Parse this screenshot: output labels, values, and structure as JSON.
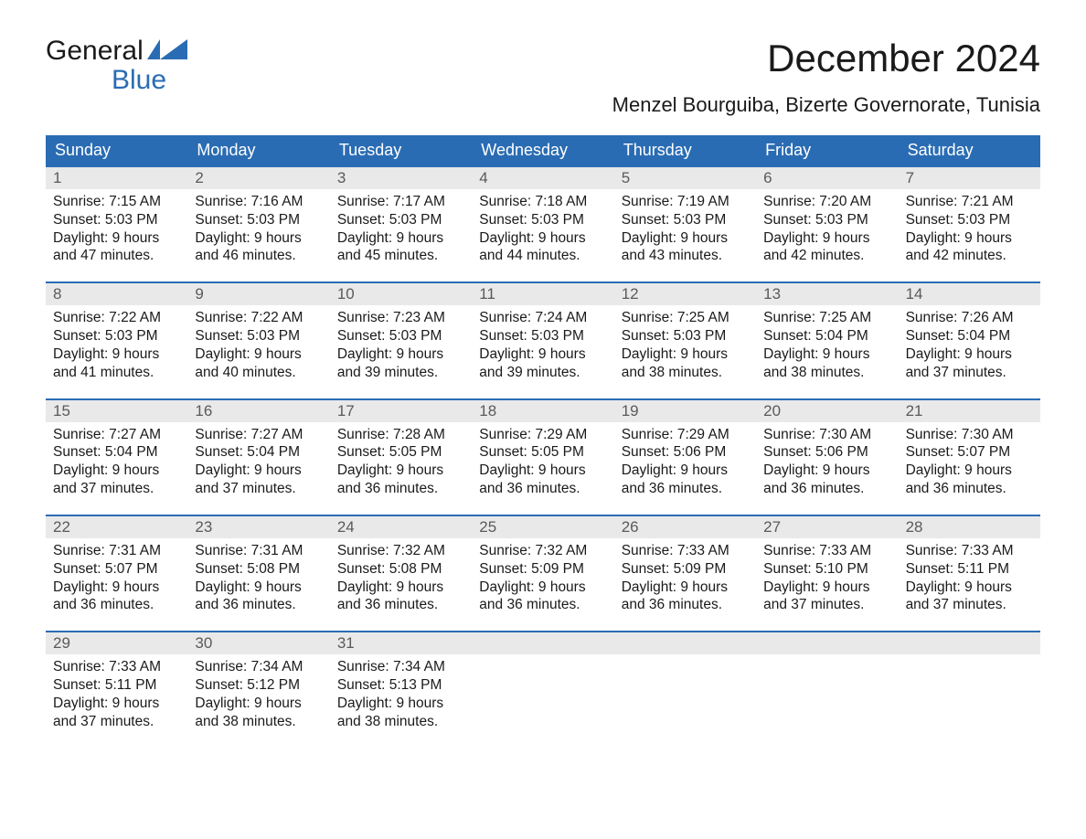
{
  "logo": {
    "line1": "General",
    "line2": "Blue",
    "icon_color": "#2a6cb3"
  },
  "title": "December 2024",
  "location": "Menzel Bourguiba, Bizerte Governorate, Tunisia",
  "colors": {
    "header_bg": "#2a6cb3",
    "header_text": "#ffffff",
    "daynum_bg": "#e9e9e9",
    "daynum_text": "#5a5a5a",
    "border": "#2a6cb3",
    "body_text": "#1a1a1a",
    "background": "#ffffff"
  },
  "typography": {
    "title_fontsize": 42,
    "location_fontsize": 22,
    "dow_fontsize": 18,
    "daynum_fontsize": 17,
    "body_fontsize": 15.5,
    "font_family": "Arial"
  },
  "days_of_week": [
    "Sunday",
    "Monday",
    "Tuesday",
    "Wednesday",
    "Thursday",
    "Friday",
    "Saturday"
  ],
  "weeks": [
    [
      {
        "n": "1",
        "sr": "Sunrise: 7:15 AM",
        "ss": "Sunset: 5:03 PM",
        "d1": "Daylight: 9 hours",
        "d2": "and 47 minutes."
      },
      {
        "n": "2",
        "sr": "Sunrise: 7:16 AM",
        "ss": "Sunset: 5:03 PM",
        "d1": "Daylight: 9 hours",
        "d2": "and 46 minutes."
      },
      {
        "n": "3",
        "sr": "Sunrise: 7:17 AM",
        "ss": "Sunset: 5:03 PM",
        "d1": "Daylight: 9 hours",
        "d2": "and 45 minutes."
      },
      {
        "n": "4",
        "sr": "Sunrise: 7:18 AM",
        "ss": "Sunset: 5:03 PM",
        "d1": "Daylight: 9 hours",
        "d2": "and 44 minutes."
      },
      {
        "n": "5",
        "sr": "Sunrise: 7:19 AM",
        "ss": "Sunset: 5:03 PM",
        "d1": "Daylight: 9 hours",
        "d2": "and 43 minutes."
      },
      {
        "n": "6",
        "sr": "Sunrise: 7:20 AM",
        "ss": "Sunset: 5:03 PM",
        "d1": "Daylight: 9 hours",
        "d2": "and 42 minutes."
      },
      {
        "n": "7",
        "sr": "Sunrise: 7:21 AM",
        "ss": "Sunset: 5:03 PM",
        "d1": "Daylight: 9 hours",
        "d2": "and 42 minutes."
      }
    ],
    [
      {
        "n": "8",
        "sr": "Sunrise: 7:22 AM",
        "ss": "Sunset: 5:03 PM",
        "d1": "Daylight: 9 hours",
        "d2": "and 41 minutes."
      },
      {
        "n": "9",
        "sr": "Sunrise: 7:22 AM",
        "ss": "Sunset: 5:03 PM",
        "d1": "Daylight: 9 hours",
        "d2": "and 40 minutes."
      },
      {
        "n": "10",
        "sr": "Sunrise: 7:23 AM",
        "ss": "Sunset: 5:03 PM",
        "d1": "Daylight: 9 hours",
        "d2": "and 39 minutes."
      },
      {
        "n": "11",
        "sr": "Sunrise: 7:24 AM",
        "ss": "Sunset: 5:03 PM",
        "d1": "Daylight: 9 hours",
        "d2": "and 39 minutes."
      },
      {
        "n": "12",
        "sr": "Sunrise: 7:25 AM",
        "ss": "Sunset: 5:03 PM",
        "d1": "Daylight: 9 hours",
        "d2": "and 38 minutes."
      },
      {
        "n": "13",
        "sr": "Sunrise: 7:25 AM",
        "ss": "Sunset: 5:04 PM",
        "d1": "Daylight: 9 hours",
        "d2": "and 38 minutes."
      },
      {
        "n": "14",
        "sr": "Sunrise: 7:26 AM",
        "ss": "Sunset: 5:04 PM",
        "d1": "Daylight: 9 hours",
        "d2": "and 37 minutes."
      }
    ],
    [
      {
        "n": "15",
        "sr": "Sunrise: 7:27 AM",
        "ss": "Sunset: 5:04 PM",
        "d1": "Daylight: 9 hours",
        "d2": "and 37 minutes."
      },
      {
        "n": "16",
        "sr": "Sunrise: 7:27 AM",
        "ss": "Sunset: 5:04 PM",
        "d1": "Daylight: 9 hours",
        "d2": "and 37 minutes."
      },
      {
        "n": "17",
        "sr": "Sunrise: 7:28 AM",
        "ss": "Sunset: 5:05 PM",
        "d1": "Daylight: 9 hours",
        "d2": "and 36 minutes."
      },
      {
        "n": "18",
        "sr": "Sunrise: 7:29 AM",
        "ss": "Sunset: 5:05 PM",
        "d1": "Daylight: 9 hours",
        "d2": "and 36 minutes."
      },
      {
        "n": "19",
        "sr": "Sunrise: 7:29 AM",
        "ss": "Sunset: 5:06 PM",
        "d1": "Daylight: 9 hours",
        "d2": "and 36 minutes."
      },
      {
        "n": "20",
        "sr": "Sunrise: 7:30 AM",
        "ss": "Sunset: 5:06 PM",
        "d1": "Daylight: 9 hours",
        "d2": "and 36 minutes."
      },
      {
        "n": "21",
        "sr": "Sunrise: 7:30 AM",
        "ss": "Sunset: 5:07 PM",
        "d1": "Daylight: 9 hours",
        "d2": "and 36 minutes."
      }
    ],
    [
      {
        "n": "22",
        "sr": "Sunrise: 7:31 AM",
        "ss": "Sunset: 5:07 PM",
        "d1": "Daylight: 9 hours",
        "d2": "and 36 minutes."
      },
      {
        "n": "23",
        "sr": "Sunrise: 7:31 AM",
        "ss": "Sunset: 5:08 PM",
        "d1": "Daylight: 9 hours",
        "d2": "and 36 minutes."
      },
      {
        "n": "24",
        "sr": "Sunrise: 7:32 AM",
        "ss": "Sunset: 5:08 PM",
        "d1": "Daylight: 9 hours",
        "d2": "and 36 minutes."
      },
      {
        "n": "25",
        "sr": "Sunrise: 7:32 AM",
        "ss": "Sunset: 5:09 PM",
        "d1": "Daylight: 9 hours",
        "d2": "and 36 minutes."
      },
      {
        "n": "26",
        "sr": "Sunrise: 7:33 AM",
        "ss": "Sunset: 5:09 PM",
        "d1": "Daylight: 9 hours",
        "d2": "and 36 minutes."
      },
      {
        "n": "27",
        "sr": "Sunrise: 7:33 AM",
        "ss": "Sunset: 5:10 PM",
        "d1": "Daylight: 9 hours",
        "d2": "and 37 minutes."
      },
      {
        "n": "28",
        "sr": "Sunrise: 7:33 AM",
        "ss": "Sunset: 5:11 PM",
        "d1": "Daylight: 9 hours",
        "d2": "and 37 minutes."
      }
    ],
    [
      {
        "n": "29",
        "sr": "Sunrise: 7:33 AM",
        "ss": "Sunset: 5:11 PM",
        "d1": "Daylight: 9 hours",
        "d2": "and 37 minutes."
      },
      {
        "n": "30",
        "sr": "Sunrise: 7:34 AM",
        "ss": "Sunset: 5:12 PM",
        "d1": "Daylight: 9 hours",
        "d2": "and 38 minutes."
      },
      {
        "n": "31",
        "sr": "Sunrise: 7:34 AM",
        "ss": "Sunset: 5:13 PM",
        "d1": "Daylight: 9 hours",
        "d2": "and 38 minutes."
      },
      {
        "n": "",
        "sr": "",
        "ss": "",
        "d1": "",
        "d2": ""
      },
      {
        "n": "",
        "sr": "",
        "ss": "",
        "d1": "",
        "d2": ""
      },
      {
        "n": "",
        "sr": "",
        "ss": "",
        "d1": "",
        "d2": ""
      },
      {
        "n": "",
        "sr": "",
        "ss": "",
        "d1": "",
        "d2": ""
      }
    ]
  ]
}
